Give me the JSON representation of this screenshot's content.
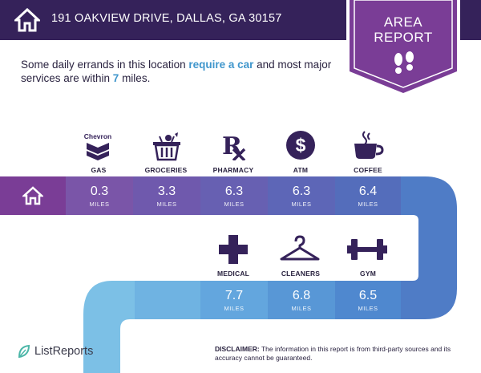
{
  "header": {
    "address": "191 OAKVIEW DRIVE, DALLAS, GA 30157"
  },
  "badge": {
    "line1": "AREA",
    "line2": "REPORT"
  },
  "intro": {
    "part1": "Some daily errands in this location ",
    "highlight1": "require a car",
    "part2": " and most major services are within ",
    "highlight2": "7",
    "part3": " miles."
  },
  "unit_label": "MILES",
  "top_row": [
    {
      "label": "GAS",
      "value": "0.3",
      "icon": "chevron-gas-icon",
      "brand_text": "Chevron"
    },
    {
      "label": "GROCERIES",
      "value": "3.3",
      "icon": "grocery-basket-icon"
    },
    {
      "label": "PHARMACY",
      "value": "6.3",
      "icon": "rx-icon"
    },
    {
      "label": "ATM",
      "value": "6.3",
      "icon": "dollar-circle-icon"
    },
    {
      "label": "COFFEE",
      "value": "6.4",
      "icon": "coffee-cup-icon"
    }
  ],
  "bottom_row": [
    {
      "label": "MEDICAL",
      "value": "7.7",
      "icon": "medical-cross-icon"
    },
    {
      "label": "CLEANERS",
      "value": "6.8",
      "icon": "hanger-icon"
    },
    {
      "label": "GYM",
      "value": "6.5",
      "icon": "dumbbell-icon"
    }
  ],
  "footer": {
    "logo_text": "ListReports",
    "disclaimer_label": "DISCLAIMER:",
    "disclaimer_text": " The information in this report is from third-party sources and its accuracy cannot be guaranteed."
  },
  "colors": {
    "header": "#35225a",
    "badge": "#7a3d96",
    "highlight": "#3f96cc"
  }
}
